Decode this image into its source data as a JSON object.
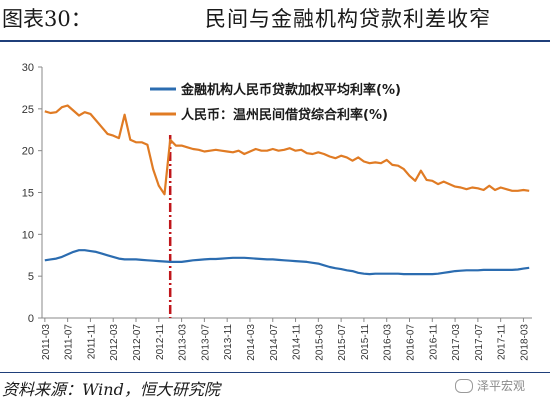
{
  "header": {
    "figure_number": "图表30：",
    "title": "民间与金融机构贷款利差收窄"
  },
  "source": "资料来源：Wind，恒大研究院",
  "watermark": {
    "text": "泽平宏观",
    "icon": "wechat-icon"
  },
  "chart_data": {
    "type": "line",
    "title": "",
    "xlabel": "",
    "ylabel": "",
    "ylim": [
      0,
      30
    ],
    "yticks": [
      0,
      5,
      10,
      15,
      20,
      25,
      30
    ],
    "xtick_labels": [
      "2011-03",
      "2011-07",
      "2011-11",
      "2012-03",
      "2012-07",
      "2012-11",
      "2013-03",
      "2013-07",
      "2013-11",
      "2014-03",
      "2014-07",
      "2014-11",
      "2015-03",
      "2015-07",
      "2015-11",
      "2016-03",
      "2016-07",
      "2016-11",
      "2017-03",
      "2017-07",
      "2017-11",
      "2018-03"
    ],
    "x": [
      "2011-03",
      "2011-04",
      "2011-05",
      "2011-06",
      "2011-07",
      "2011-08",
      "2011-09",
      "2011-10",
      "2011-11",
      "2011-12",
      "2012-01",
      "2012-02",
      "2012-03",
      "2012-04",
      "2012-05",
      "2012-06",
      "2012-07",
      "2012-08",
      "2012-09",
      "2012-10",
      "2012-11",
      "2012-12",
      "2013-01",
      "2013-02",
      "2013-03",
      "2013-04",
      "2013-05",
      "2013-06",
      "2013-07",
      "2013-08",
      "2013-09",
      "2013-10",
      "2013-11",
      "2013-12",
      "2014-01",
      "2014-02",
      "2014-03",
      "2014-04",
      "2014-05",
      "2014-06",
      "2014-07",
      "2014-08",
      "2014-09",
      "2014-10",
      "2014-11",
      "2014-12",
      "2015-01",
      "2015-02",
      "2015-03",
      "2015-04",
      "2015-05",
      "2015-06",
      "2015-07",
      "2015-08",
      "2015-09",
      "2015-10",
      "2015-11",
      "2015-12",
      "2016-01",
      "2016-02",
      "2016-03",
      "2016-04",
      "2016-05",
      "2016-06",
      "2016-07",
      "2016-08",
      "2016-09",
      "2016-10",
      "2016-11",
      "2016-12",
      "2017-01",
      "2017-02",
      "2017-03",
      "2017-04",
      "2017-05",
      "2017-06",
      "2017-07",
      "2017-08",
      "2017-09",
      "2017-10",
      "2017-11",
      "2017-12",
      "2018-01",
      "2018-02",
      "2018-03",
      "2018-04"
    ],
    "series": [
      {
        "name": "金融机构人民币贷款加权平均利率(%)",
        "color": "#2b6cb0",
        "values": [
          6.9,
          7.0,
          7.1,
          7.3,
          7.6,
          7.9,
          8.1,
          8.1,
          8.0,
          7.9,
          7.7,
          7.5,
          7.3,
          7.1,
          7.0,
          7.0,
          7.0,
          6.95,
          6.9,
          6.85,
          6.8,
          6.75,
          6.7,
          6.7,
          6.7,
          6.8,
          6.9,
          6.95,
          7.0,
          7.05,
          7.05,
          7.1,
          7.15,
          7.2,
          7.2,
          7.2,
          7.15,
          7.1,
          7.05,
          7.0,
          7.0,
          6.95,
          6.9,
          6.85,
          6.8,
          6.75,
          6.7,
          6.6,
          6.5,
          6.3,
          6.1,
          5.95,
          5.85,
          5.7,
          5.6,
          5.4,
          5.3,
          5.25,
          5.3,
          5.3,
          5.3,
          5.3,
          5.3,
          5.25,
          5.25,
          5.25,
          5.25,
          5.25,
          5.25,
          5.3,
          5.4,
          5.5,
          5.6,
          5.65,
          5.7,
          5.7,
          5.7,
          5.75,
          5.75,
          5.75,
          5.75,
          5.75,
          5.75,
          5.8,
          5.9,
          6.0
        ]
      },
      {
        "name": "人民币：温州民间借贷综合利率(%)",
        "color": "#e07b24",
        "values": [
          24.7,
          24.5,
          24.6,
          25.2,
          25.4,
          24.8,
          24.2,
          24.6,
          24.4,
          23.6,
          22.8,
          22.0,
          21.8,
          21.5,
          24.3,
          21.3,
          21.0,
          21.0,
          20.7,
          17.8,
          15.8,
          14.8,
          21.3,
          20.6,
          20.6,
          20.4,
          20.2,
          20.1,
          19.9,
          20.0,
          20.1,
          20.0,
          19.9,
          19.8,
          20.0,
          19.6,
          19.9,
          20.2,
          20.0,
          20.0,
          20.2,
          20.0,
          20.1,
          20.3,
          20.0,
          20.1,
          19.7,
          19.6,
          19.8,
          19.6,
          19.3,
          19.1,
          19.4,
          19.2,
          18.8,
          19.2,
          18.7,
          18.5,
          18.6,
          18.5,
          18.9,
          18.3,
          18.2,
          17.8,
          17.0,
          16.4,
          17.6,
          16.5,
          16.4,
          16.0,
          16.3,
          16.0,
          15.7,
          15.6,
          15.4,
          15.6,
          15.5,
          15.3,
          15.8,
          15.3,
          15.6,
          15.4,
          15.2,
          15.2,
          15.3,
          15.2
        ]
      }
    ],
    "annotations": [
      {
        "type": "vertical-dashdot-line",
        "x": "2013-01",
        "color": "#c0161b"
      }
    ],
    "grid": false,
    "legend_position": "top-center"
  }
}
